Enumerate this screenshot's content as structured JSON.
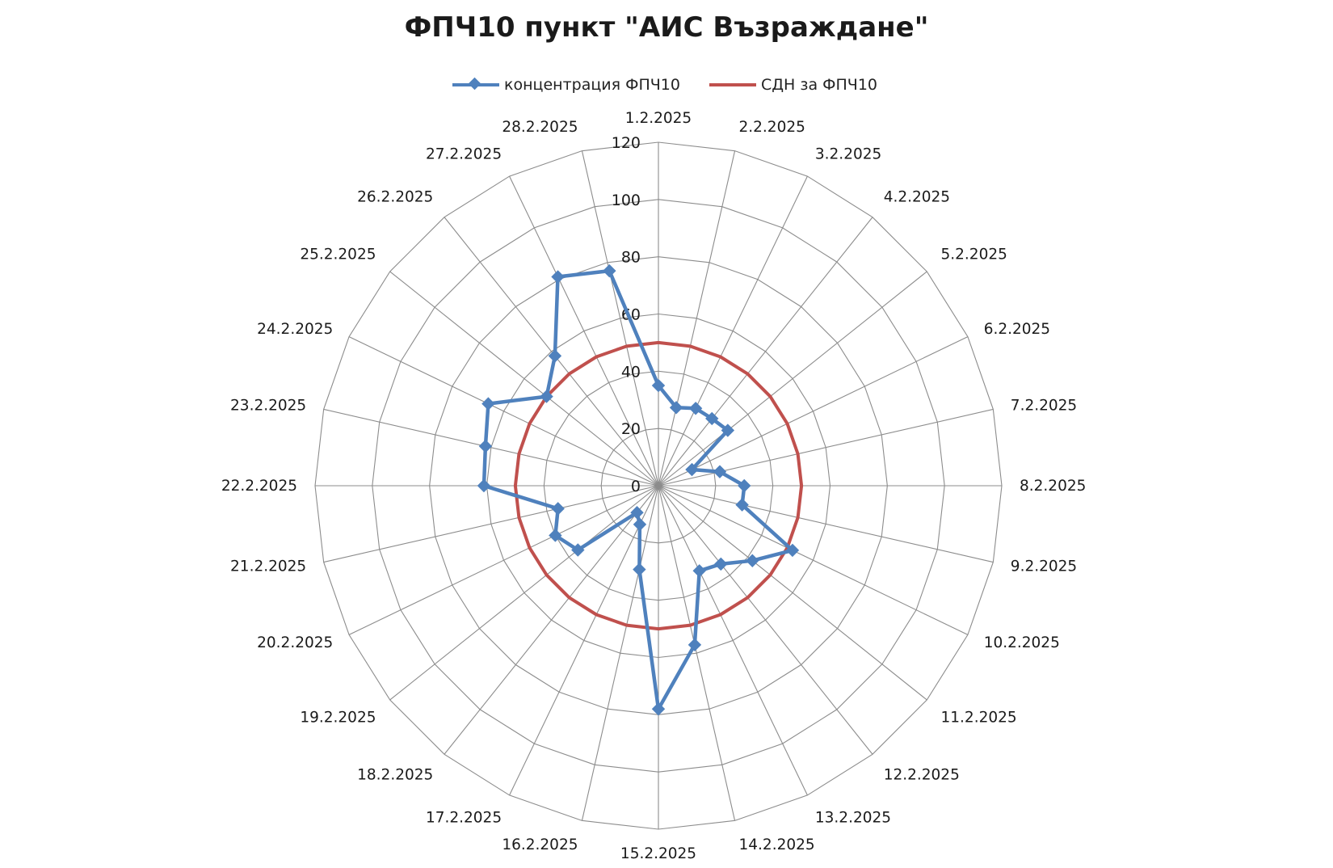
{
  "chart_data": {
    "type": "radar",
    "title": "ФПЧ10 пункт \"АИС Възраждане\"",
    "categories": [
      "1.2.2025",
      "2.2.2025",
      "3.2.2025",
      "4.2.2025",
      "5.2.2025",
      "6.2.2025",
      "7.2.2025",
      "8.2.2025",
      "9.2.2025",
      "10.2.2025",
      "11.2.2025",
      "12.2.2025",
      "13.2.2025",
      "14.2.2025",
      "15.2.2025",
      "16.2.2025",
      "17.2.2025",
      "18.2.2025",
      "19.2.2025",
      "20.2.2025",
      "21.2.2025",
      "22.2.2025",
      "23.2.2025",
      "24.2.2025",
      "25.2.2025",
      "26.2.2025",
      "27.2.2025",
      "28.2.2025"
    ],
    "radial_axis": {
      "min": 0,
      "max": 120,
      "step": 20,
      "ticks": [
        0,
        20,
        40,
        60,
        80,
        100,
        120
      ]
    },
    "grid": true,
    "legend_position": "top",
    "series": [
      {
        "name": "концентрация  ФПЧ10",
        "color": "#4f81bd",
        "marker": "diamond",
        "values": [
          35,
          28,
          30,
          30,
          31,
          13,
          22,
          30,
          30,
          52,
          42,
          35,
          33,
          57,
          78,
          30,
          15,
          12,
          36,
          40,
          36,
          61,
          62,
          66,
          50,
          58,
          81,
          77
        ]
      },
      {
        "name": "СДН за ФПЧ10",
        "color": "#c0504d",
        "marker": "none",
        "values": [
          50,
          50,
          50,
          50,
          50,
          50,
          50,
          50,
          50,
          50,
          50,
          50,
          50,
          50,
          50,
          50,
          50,
          50,
          50,
          50,
          50,
          50,
          50,
          50,
          50,
          50,
          50,
          50
        ]
      }
    ]
  }
}
